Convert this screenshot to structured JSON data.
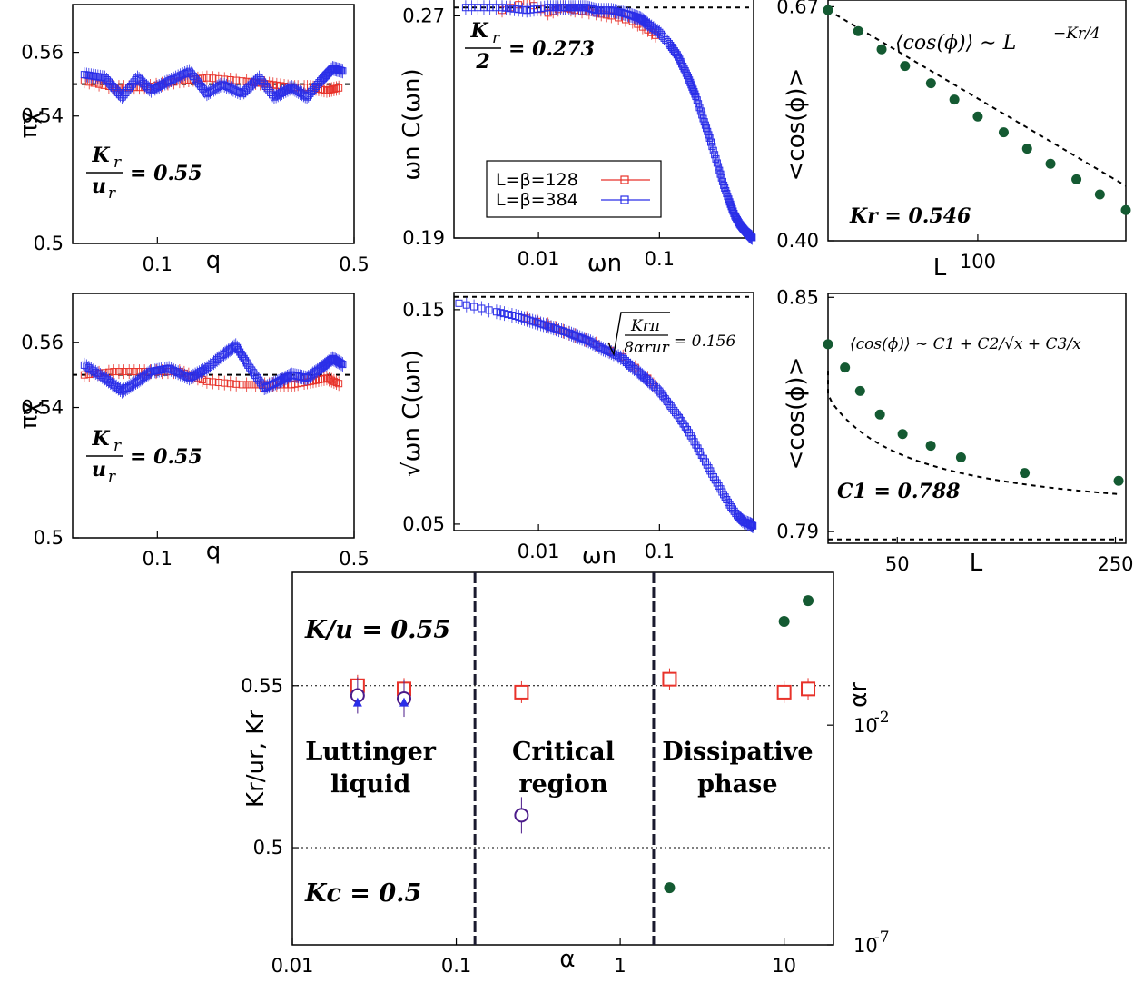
{
  "colors": {
    "red": "#e8322a",
    "blue": "#2a2ee8",
    "green": "#145a32",
    "purple": "#4b1b8a"
  },
  "chart_data": [
    {
      "id": "a1",
      "type": "scatter",
      "xlabel": "q",
      "ylabel": "πχ",
      "xscale": "log",
      "xlim": [
        0.05,
        0.5
      ],
      "ylim": [
        0.5,
        0.575
      ],
      "xticks": [
        {
          "v": 0.1,
          "label": "0.1"
        },
        {
          "v": 0.5,
          "label": "0.5"
        }
      ],
      "yticks": [
        {
          "v": 0.5,
          "label": "0.5"
        },
        {
          "v": 0.54,
          "label": "0.54"
        },
        {
          "v": 0.56,
          "label": "0.56"
        }
      ],
      "hline": 0.55,
      "annotation": {
        "lhs_num": "K",
        "lhs_num_sub": "r",
        "lhs_den": "u",
        "lhs_den_sub": "r",
        "rhs": "= 0.55"
      },
      "series": [
        {
          "color": "red",
          "x": [
            0.055,
            0.07,
            0.09,
            0.12,
            0.15,
            0.2,
            0.25,
            0.3,
            0.35,
            0.4,
            0.45
          ],
          "y": [
            0.551,
            0.549,
            0.549,
            0.551,
            0.552,
            0.551,
            0.55,
            0.549,
            0.549,
            0.548,
            0.549
          ]
        },
        {
          "color": "blue",
          "x": [
            0.055,
            0.065,
            0.075,
            0.085,
            0.095,
            0.11,
            0.13,
            0.15,
            0.17,
            0.2,
            0.23,
            0.26,
            0.3,
            0.34,
            0.38,
            0.42,
            0.46
          ],
          "y": [
            0.553,
            0.552,
            0.546,
            0.552,
            0.548,
            0.551,
            0.554,
            0.547,
            0.55,
            0.547,
            0.552,
            0.546,
            0.549,
            0.546,
            0.551,
            0.555,
            0.554
          ]
        }
      ]
    },
    {
      "id": "b1",
      "type": "scatter",
      "xlabel": "ωn",
      "ylabel": "ωn C(ωn)",
      "xscale": "log",
      "xlim": [
        0.002,
        0.6
      ],
      "ylim": [
        0.19,
        0.277
      ],
      "xticks": [
        {
          "v": 0.01,
          "label": "0.01"
        },
        {
          "v": 0.1,
          "label": "0.1"
        }
      ],
      "yticks": [
        {
          "v": 0.19,
          "label": "0.19"
        },
        {
          "v": 0.27,
          "label": "0.27"
        }
      ],
      "hline": 0.273,
      "annotation": {
        "lhs_num": "K",
        "lhs_num_sub": "r",
        "lhs_den": "2",
        "rhs": "= 0.273"
      },
      "legend": [
        {
          "label": "L=β=128",
          "color": "red"
        },
        {
          "label": "L=β=384",
          "color": "blue"
        }
      ],
      "series": [
        {
          "color": "red",
          "x": [
            0.005,
            0.008,
            0.012,
            0.016,
            0.02,
            0.03,
            0.04,
            0.06,
            0.08,
            0.1
          ],
          "y": [
            0.272,
            0.275,
            0.271,
            0.273,
            0.272,
            0.271,
            0.27,
            0.268,
            0.265,
            0.262
          ]
        },
        {
          "color": "blue",
          "x": [
            0.0025,
            0.005,
            0.008,
            0.012,
            0.016,
            0.02,
            0.025,
            0.03,
            0.04,
            0.05,
            0.06,
            0.07,
            0.08,
            0.1,
            0.12,
            0.14,
            0.16,
            0.18,
            0.2,
            0.23,
            0.26,
            0.3,
            0.34,
            0.38,
            0.42,
            0.46,
            0.5,
            0.55,
            0.59
          ],
          "y": [
            0.273,
            0.273,
            0.272,
            0.273,
            0.273,
            0.273,
            0.273,
            0.272,
            0.272,
            0.271,
            0.27,
            0.269,
            0.267,
            0.264,
            0.26,
            0.256,
            0.251,
            0.246,
            0.241,
            0.233,
            0.226,
            0.217,
            0.209,
            0.203,
            0.198,
            0.195,
            0.193,
            0.191,
            0.19
          ]
        }
      ]
    },
    {
      "id": "c1",
      "type": "scatter",
      "xlabel": "L",
      "ylabel": "<cos(ϕ)>",
      "xscale": "log",
      "yscale": "log",
      "xlim": [
        24,
        410
      ],
      "ylim": [
        0.4,
        0.68
      ],
      "xticks": [
        {
          "v": 100,
          "label": "100"
        }
      ],
      "yticks": [
        {
          "v": 0.4,
          "label": "0.40"
        },
        {
          "v": 0.67,
          "label": "0.67"
        }
      ],
      "fit": "power",
      "annotation_formula": "⟨cos(ϕ)⟩ ∼ L",
      "annotation_exponent": "−Kr/4",
      "annotation_result": "Kr = 0.546",
      "series": [
        {
          "color": "green",
          "x": [
            24,
            32,
            40,
            50,
            64,
            80,
            100,
            128,
            160,
            200,
            256,
            320,
            410
          ],
          "y": [
            0.665,
            0.635,
            0.61,
            0.588,
            0.566,
            0.546,
            0.526,
            0.508,
            0.49,
            0.474,
            0.458,
            0.443,
            0.428
          ]
        }
      ]
    },
    {
      "id": "a2",
      "type": "scatter",
      "xlabel": "q",
      "ylabel": "πχ",
      "xscale": "log",
      "xlim": [
        0.05,
        0.5
      ],
      "ylim": [
        0.5,
        0.575
      ],
      "xticks": [
        {
          "v": 0.1,
          "label": "0.1"
        },
        {
          "v": 0.5,
          "label": "0.5"
        }
      ],
      "yticks": [
        {
          "v": 0.5,
          "label": "0.5"
        },
        {
          "v": 0.54,
          "label": "0.54"
        },
        {
          "v": 0.56,
          "label": "0.56"
        }
      ],
      "hline": 0.55,
      "annotation": {
        "lhs_num": "K",
        "lhs_num_sub": "r",
        "lhs_den": "u",
        "lhs_den_sub": "r",
        "rhs": "= 0.55"
      },
      "series": [
        {
          "color": "red",
          "x": [
            0.055,
            0.07,
            0.09,
            0.12,
            0.15,
            0.2,
            0.25,
            0.3,
            0.35,
            0.4,
            0.45
          ],
          "y": [
            0.55,
            0.551,
            0.551,
            0.551,
            0.548,
            0.547,
            0.547,
            0.547,
            0.548,
            0.549,
            0.547
          ]
        },
        {
          "color": "blue",
          "x": [
            0.055,
            0.065,
            0.075,
            0.085,
            0.095,
            0.11,
            0.13,
            0.15,
            0.17,
            0.19,
            0.21,
            0.24,
            0.27,
            0.3,
            0.34,
            0.38,
            0.42,
            0.46
          ],
          "y": [
            0.553,
            0.549,
            0.545,
            0.548,
            0.551,
            0.552,
            0.549,
            0.552,
            0.556,
            0.559,
            0.553,
            0.546,
            0.548,
            0.55,
            0.549,
            0.552,
            0.555,
            0.553
          ]
        }
      ]
    },
    {
      "id": "b2",
      "type": "scatter",
      "xlabel": "ωn",
      "ylabel": "√ωn C(ωn)",
      "xscale": "log",
      "xlim": [
        0.002,
        0.6
      ],
      "ylim": [
        0.047,
        0.158
      ],
      "xticks": [
        {
          "v": 0.01,
          "label": "0.01"
        },
        {
          "v": 0.1,
          "label": "0.1"
        }
      ],
      "yticks": [
        {
          "v": 0.05,
          "label": "0.05"
        },
        {
          "v": 0.15,
          "label": "0.15"
        }
      ],
      "hline": 0.156,
      "annotation_sqrt": {
        "num": "Krπ",
        "den": "8αrur",
        "rhs": "= 0.156"
      },
      "series": [
        {
          "color": "red",
          "x": [
            0.008,
            0.012,
            0.016,
            0.02,
            0.03,
            0.05,
            0.08,
            0.1
          ],
          "y": [
            0.146,
            0.143,
            0.14,
            0.138,
            0.134,
            0.128,
            0.118,
            0.112
          ]
        },
        {
          "color": "blue",
          "x": [
            0.0022,
            0.0045,
            0.0065,
            0.0085,
            0.011,
            0.014,
            0.018,
            0.022,
            0.027,
            0.033,
            0.04,
            0.05,
            0.06,
            0.07,
            0.08,
            0.1,
            0.12,
            0.14,
            0.17,
            0.2,
            0.24,
            0.28,
            0.33,
            0.38,
            0.44,
            0.5,
            0.56,
            0.6
          ],
          "y": [
            0.153,
            0.149,
            0.147,
            0.145,
            0.143,
            0.141,
            0.139,
            0.137,
            0.135,
            0.132,
            0.13,
            0.127,
            0.123,
            0.12,
            0.117,
            0.112,
            0.106,
            0.101,
            0.094,
            0.087,
            0.079,
            0.072,
            0.065,
            0.059,
            0.054,
            0.051,
            0.05,
            0.049
          ]
        }
      ]
    },
    {
      "id": "c2",
      "type": "scatter",
      "xlabel": "L",
      "ylabel": "<cos(ϕ)>",
      "xscale": "log",
      "xlim": [
        30,
        270
      ],
      "ylim": [
        0.787,
        0.851
      ],
      "xticks": [
        {
          "v": 50,
          "label": "50"
        },
        {
          "v": 250,
          "label": "250"
        }
      ],
      "yticks": [
        {
          "v": 0.79,
          "label": "0.79"
        },
        {
          "v": 0.85,
          "label": "0.85"
        }
      ],
      "hline": 0.788,
      "fit": "curve",
      "annotation_formula": "⟨cos(ϕ)⟩ ∼ C1 + C2/√x + C3/x",
      "annotation_result": "C1 = 0.788",
      "series": [
        {
          "color": "green",
          "x": [
            30,
            34,
            38,
            44,
            52,
            64,
            80,
            128,
            256
          ],
          "y": [
            0.838,
            0.832,
            0.826,
            0.82,
            0.815,
            0.812,
            0.809,
            0.805,
            0.803
          ]
        }
      ]
    },
    {
      "id": "d",
      "type": "scatter",
      "xlabel": "α",
      "ylabel": "Kr/ur, Kr",
      "y2label": "αr",
      "xscale": "log",
      "xlim": [
        0.01,
        20
      ],
      "ylim": [
        0.47,
        0.585
      ],
      "y2scale": "log",
      "y2lim": [
        1e-07,
        30
      ],
      "xticks": [
        {
          "v": 0.01,
          "label": "0.01"
        },
        {
          "v": 0.1,
          "label": "0.1"
        },
        {
          "v": 1,
          "label": "1"
        },
        {
          "v": 10,
          "label": "10"
        }
      ],
      "yticks": [
        {
          "v": 0.5,
          "label": "0.5"
        },
        {
          "v": 0.55,
          "label": "0.55"
        }
      ],
      "y2ticks": [
        {
          "v": 1e-07,
          "base": "10",
          "exp": "-7"
        },
        {
          "v": 0.01,
          "base": "10",
          "exp": "-2"
        }
      ],
      "hlines": [
        0.55,
        0.5
      ],
      "vlines": [
        0.13,
        1.6
      ],
      "labels": {
        "ku": "K/u = 0.55",
        "kc": "Kc = 0.5"
      },
      "regions": [
        {
          "line1": "Luttinger",
          "line2": "liquid",
          "x": 0.03
        },
        {
          "line1": "Critical",
          "line2": "region",
          "x": 0.45
        },
        {
          "line1": "Dissipative",
          "line2": "phase",
          "x": 5.2
        }
      ],
      "series": [
        {
          "name": "Kr/ur",
          "marker": "square",
          "color": "red",
          "x": [
            0.025,
            0.048,
            0.25,
            2.0,
            10.0,
            14.0
          ],
          "y": [
            0.55,
            0.549,
            0.548,
            0.552,
            0.548,
            0.549
          ]
        },
        {
          "name": "Kr",
          "marker": "circle-open",
          "color": "purple",
          "x": [
            0.025,
            0.048,
            0.25
          ],
          "y": [
            0.547,
            0.546,
            0.51
          ]
        },
        {
          "name": "Kr-alt",
          "marker": "triangle",
          "color": "blue",
          "x": [
            0.025,
            0.048
          ],
          "y": [
            0.545,
            0.545
          ]
        },
        {
          "name": "αr",
          "marker": "circle-filled",
          "color": "green",
          "axis": "y2",
          "x": [
            2.0,
            10.0,
            14.0
          ],
          "y": [
            2e-06,
            2.3,
            6.8
          ]
        }
      ]
    }
  ]
}
